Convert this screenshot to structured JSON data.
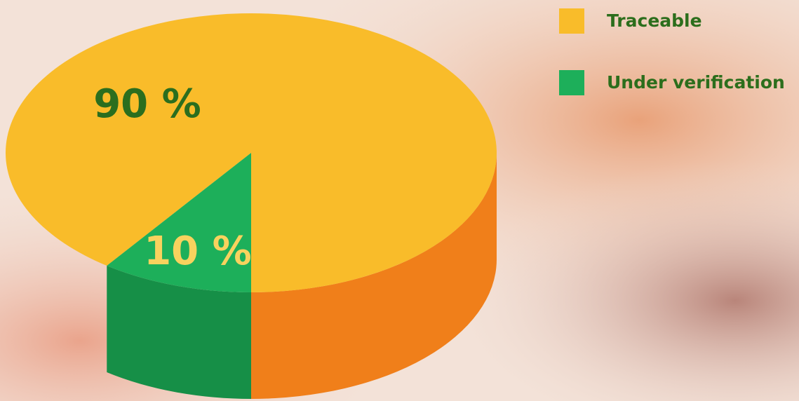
{
  "chart_data": {
    "type": "pie3d",
    "categories": [
      "Traceable",
      "Under verification"
    ],
    "values": [
      90,
      10
    ],
    "value_labels": [
      "90 %",
      "10 %"
    ],
    "colors": [
      "#F9BC2A",
      "#1DAF5A"
    ],
    "side_colors": [
      "#F07F1A",
      "#168F47"
    ],
    "legend": "top-right"
  }
}
